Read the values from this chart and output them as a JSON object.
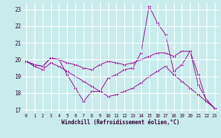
{
  "xlabel": "Windchill (Refroidissement éolien,°C)",
  "background_color": "#c8ecec",
  "line_color": "#990099",
  "grid_color": "#ffffff",
  "xlim": [
    -0.5,
    23.5
  ],
  "ylim": [
    16.8,
    23.4
  ],
  "yticks": [
    17,
    18,
    19,
    20,
    21,
    22,
    23
  ],
  "xticks": [
    0,
    1,
    2,
    3,
    4,
    5,
    6,
    7,
    8,
    9,
    10,
    11,
    12,
    13,
    14,
    15,
    16,
    17,
    18,
    19,
    20,
    21,
    22,
    23
  ],
  "series": [
    [
      19.9,
      19.7,
      19.6,
      20.1,
      20.0,
      19.1,
      18.3,
      17.5,
      18.1,
      18.1,
      18.9,
      19.1,
      19.4,
      19.5,
      20.4,
      23.2,
      22.2,
      21.5,
      19.3,
      19.7,
      20.5,
      18.5,
      17.6,
      17.1
    ],
    [
      19.9,
      19.7,
      19.6,
      20.1,
      20.0,
      19.8,
      19.7,
      19.5,
      19.4,
      19.7,
      19.9,
      19.8,
      19.7,
      19.8,
      20.0,
      20.2,
      20.4,
      20.4,
      20.2,
      20.5,
      20.5,
      19.1,
      17.5,
      17.1
    ],
    [
      19.9,
      19.6,
      19.4,
      19.8,
      19.6,
      19.3,
      19.0,
      18.7,
      18.4,
      18.1,
      17.8,
      17.9,
      18.1,
      18.3,
      18.6,
      19.0,
      19.3,
      19.6,
      19.1,
      18.7,
      18.3,
      17.9,
      17.5,
      17.1
    ]
  ]
}
